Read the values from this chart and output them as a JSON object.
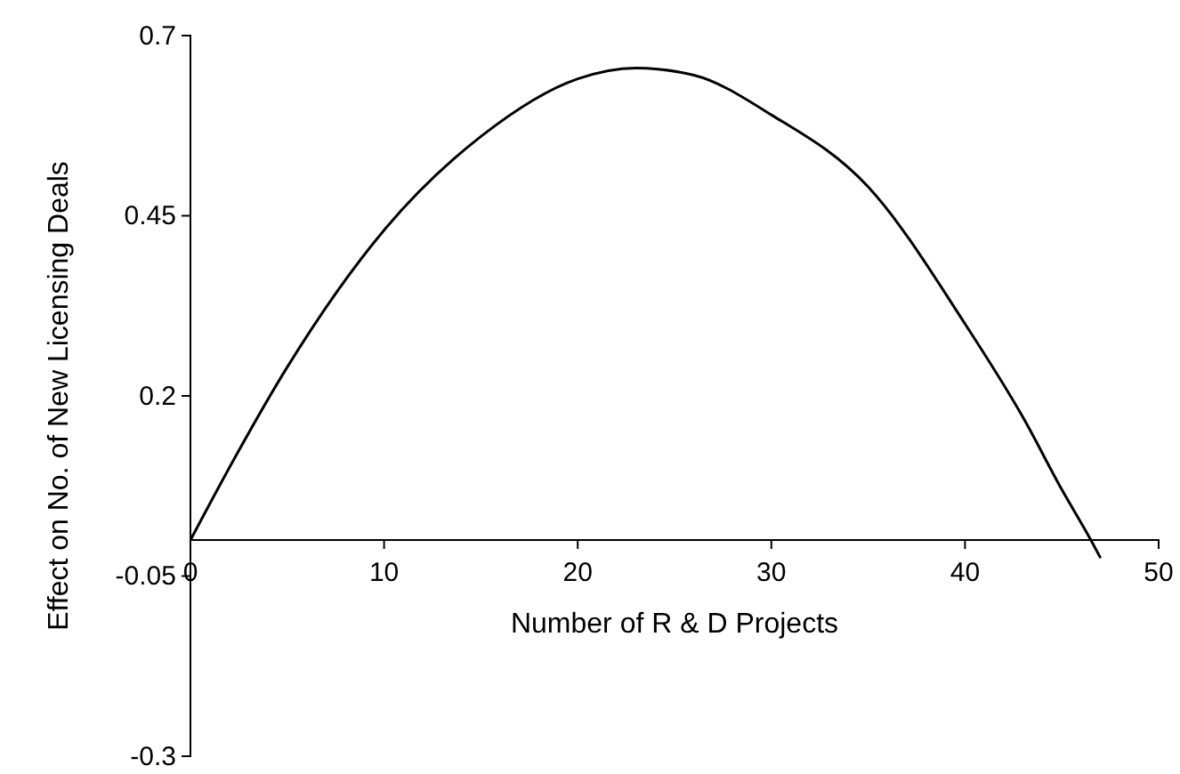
{
  "chart_data": {
    "type": "line",
    "xlabel": "Number of R & D Projects",
    "ylabel": "Effect on No. of New Licensing Deals",
    "x": [
      0,
      2,
      5,
      10,
      15,
      20,
      23,
      26,
      30,
      35,
      40,
      43,
      45,
      46.5,
      47
    ],
    "series": [
      {
        "color": "#000000",
        "values": [
          0,
          0.1,
          0.24,
          0.43,
          0.56,
          0.64,
          0.655,
          0.645,
          0.59,
          0.49,
          0.3,
          0.17,
          0.07,
          0,
          -0.025
        ]
      }
    ],
    "xlim": [
      0,
      50
    ],
    "xticks": [
      0,
      10,
      20,
      30,
      40,
      50
    ],
    "ylim": [
      -0.3,
      0.7
    ],
    "yticks": [
      -0.3,
      -0.05,
      0.2,
      0.45,
      0.7
    ],
    "grid": false,
    "marker": "none",
    "line_style": "solid"
  }
}
